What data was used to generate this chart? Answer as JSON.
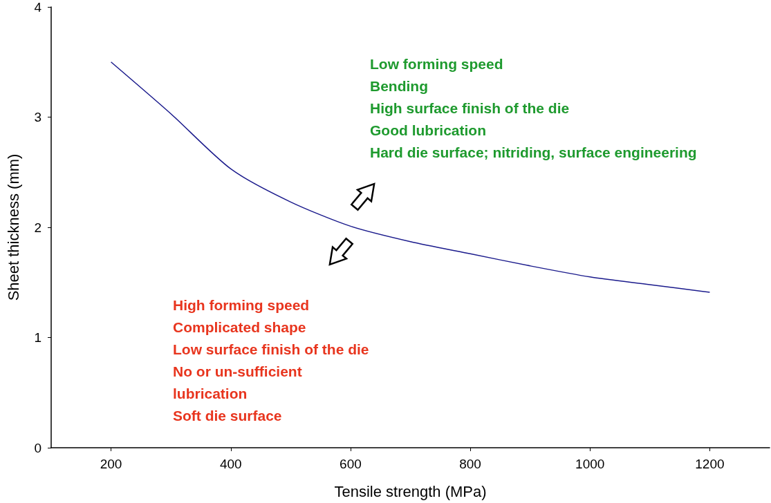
{
  "chart_data": {
    "type": "line",
    "xlabel": "Tensile strength (MPa)",
    "ylabel": "Sheet thickness (mm)",
    "x": [
      200,
      300,
      400,
      500,
      600,
      700,
      800,
      900,
      1000,
      1100,
      1200
    ],
    "series": [
      {
        "color": "#1a1a8c",
        "values": [
          3.5,
          3.03,
          2.53,
          2.23,
          2.01,
          1.87,
          1.76,
          1.65,
          1.55,
          1.48,
          1.41
        ]
      }
    ],
    "xlim": [
      100,
      1300
    ],
    "xticks": [
      200,
      400,
      600,
      800,
      1000,
      1200
    ],
    "ylim": [
      0,
      4
    ],
    "yticks": [
      0,
      1,
      2,
      3,
      4
    ],
    "grid": false,
    "marker": "none",
    "line_style": "solid",
    "annotations": [
      "Low forming speed\nBending\nHigh surface finish of the die\nGood lubrication\nHard die surface; nitriding, surface engineering",
      "High forming speed\nComplicated shape\nLow surface finish of the die\nNo or un-sufficient\nlubrication\nSoft die surface"
    ]
  }
}
